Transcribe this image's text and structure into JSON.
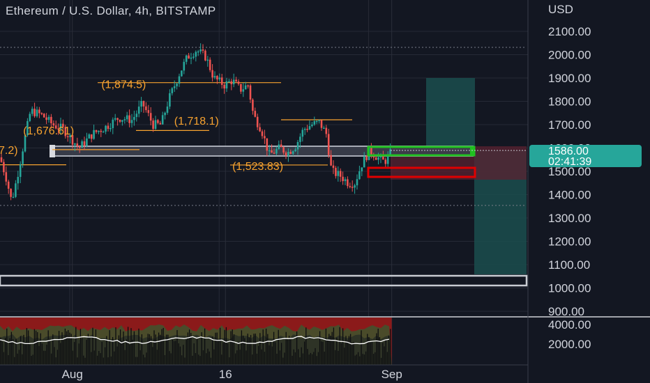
{
  "title": "Ethereum / U.S. Dollar, 4h, BITSTAMP",
  "currency": "USD",
  "current_price": "1586.00",
  "countdown": "02:41:39",
  "colors": {
    "background": "#131722",
    "up": "#26a69a",
    "down": "#ef5350",
    "annotation": "#f7a22f",
    "tag": "#26a69a",
    "profit_zone": "#1b4e4e",
    "loss_zone": "#5a2230",
    "green_box": "#20c020",
    "red_box": "#e00000"
  },
  "chart_data": {
    "type": "candlestick",
    "y_range": [
      880,
      2170
    ],
    "y_ticks": [
      "2100.00",
      "2000.00",
      "1900.00",
      "1800.00",
      "1700.00",
      "1600.00",
      "1500.00",
      "1400.00",
      "1300.00",
      "1200.00",
      "1100.00",
      "1000.00",
      "900.00"
    ],
    "x_labels": [
      {
        "label": "Aug",
        "t": 0.137
      },
      {
        "label": "16",
        "t": 0.427
      },
      {
        "label": "Sep",
        "t": 0.742
      }
    ],
    "price_path": [
      [
        0.0,
        1560
      ],
      [
        0.012,
        1470
      ],
      [
        0.022,
        1370
      ],
      [
        0.032,
        1470
      ],
      [
        0.045,
        1620
      ],
      [
        0.058,
        1760
      ],
      [
        0.08,
        1740
      ],
      [
        0.1,
        1700
      ],
      [
        0.12,
        1680
      ],
      [
        0.15,
        1600
      ],
      [
        0.175,
        1660
      ],
      [
        0.2,
        1690
      ],
      [
        0.225,
        1730
      ],
      [
        0.25,
        1720
      ],
      [
        0.27,
        1790
      ],
      [
        0.29,
        1700
      ],
      [
        0.305,
        1700
      ],
      [
        0.32,
        1810
      ],
      [
        0.34,
        1920
      ],
      [
        0.355,
        1990
      ],
      [
        0.372,
        2020
      ],
      [
        0.39,
        1990
      ],
      [
        0.405,
        1900
      ],
      [
        0.425,
        1870
      ],
      [
        0.44,
        1890
      ],
      [
        0.455,
        1850
      ],
      [
        0.47,
        1870
      ],
      [
        0.48,
        1740
      ],
      [
        0.495,
        1680
      ],
      [
        0.51,
        1570
      ],
      [
        0.53,
        1600
      ],
      [
        0.545,
        1580
      ],
      [
        0.56,
        1610
      ],
      [
        0.575,
        1680
      ],
      [
        0.59,
        1700
      ],
      [
        0.605,
        1710
      ],
      [
        0.618,
        1660
      ],
      [
        0.628,
        1500
      ],
      [
        0.645,
        1480
      ],
      [
        0.66,
        1450
      ],
      [
        0.672,
        1450
      ],
      [
        0.685,
        1530
      ],
      [
        0.7,
        1590
      ],
      [
        0.715,
        1560
      ],
      [
        0.728,
        1540
      ],
      [
        0.735,
        1560
      ],
      [
        0.742,
        1586
      ]
    ],
    "annotations": [
      {
        "label": "(1,874.5)",
        "price": 1874.5,
        "t": 0.192
      },
      {
        "label": "(1,718.1)",
        "price": 1718.1,
        "t": 0.33
      },
      {
        "label": "(1,676.61)",
        "price": 1676.61,
        "t": 0.044
      },
      {
        "label": "(1,523.83)",
        "price": 1523.83,
        "t": 0.44
      },
      {
        "label": "7.2)",
        "price": 1593,
        "t": 0.0
      }
    ],
    "indicator_ticks": [
      "4000.00",
      "2000.00"
    ]
  }
}
